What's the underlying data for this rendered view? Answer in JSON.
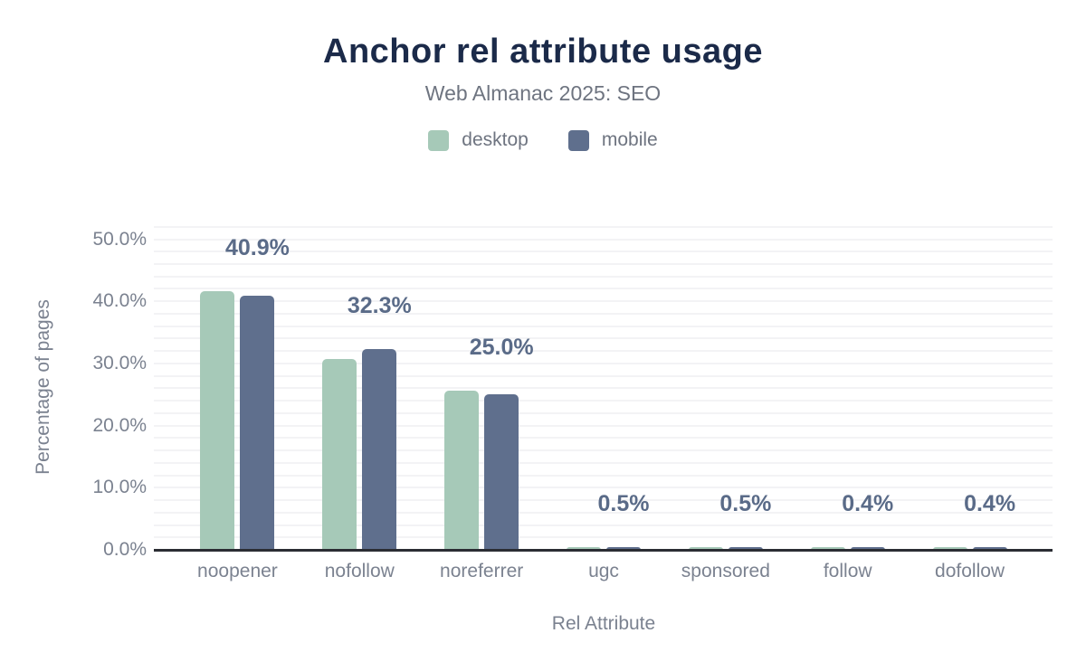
{
  "title": "Anchor rel attribute usage",
  "subtitle": "Web Almanac 2025: SEO",
  "legend": {
    "items": [
      {
        "label": "desktop",
        "color": "#a6c9b8"
      },
      {
        "label": "mobile",
        "color": "#5f6f8d"
      }
    ]
  },
  "colors": {
    "title_text": "#1b2a49",
    "muted_text": "#7b8290",
    "subtitle_text": "#6e7480",
    "desktop_bar": "#a6c9b8",
    "mobile_bar": "#5f6f8d",
    "value_label_text": "#5a6b88",
    "axis_line": "#2b2d33",
    "gridline": "#f3f3f5"
  },
  "chart_data": {
    "type": "bar",
    "title": "Anchor rel attribute usage",
    "subtitle": "Web Almanac 2025: SEO",
    "categories": [
      "noopener",
      "nofollow",
      "noreferrer",
      "ugc",
      "sponsored",
      "follow",
      "dofollow"
    ],
    "series": [
      {
        "name": "desktop",
        "color": "#a6c9b8",
        "values": [
          41.7,
          30.7,
          25.6,
          0.5,
          0.5,
          0.4,
          0.4
        ]
      },
      {
        "name": "mobile",
        "color": "#5f6f8d",
        "values": [
          40.9,
          32.3,
          25.0,
          0.5,
          0.5,
          0.4,
          0.4
        ]
      }
    ],
    "data_labels": [
      "40.9%",
      "32.3%",
      "25.0%",
      "0.5%",
      "0.5%",
      "0.4%",
      "0.4%"
    ],
    "xlabel": "Rel Attribute",
    "ylabel": "Percentage of pages",
    "ylim": [
      0,
      50
    ],
    "yticks": [
      {
        "value": 0,
        "label": "0.0%"
      },
      {
        "value": 10,
        "label": "10.0%"
      },
      {
        "value": 20,
        "label": "20.0%"
      },
      {
        "value": 30,
        "label": "30.0%"
      },
      {
        "value": 40,
        "label": "40.0%"
      },
      {
        "value": 50,
        "label": "50.0%"
      }
    ],
    "grid": "horizontal",
    "legend_position": "top"
  }
}
